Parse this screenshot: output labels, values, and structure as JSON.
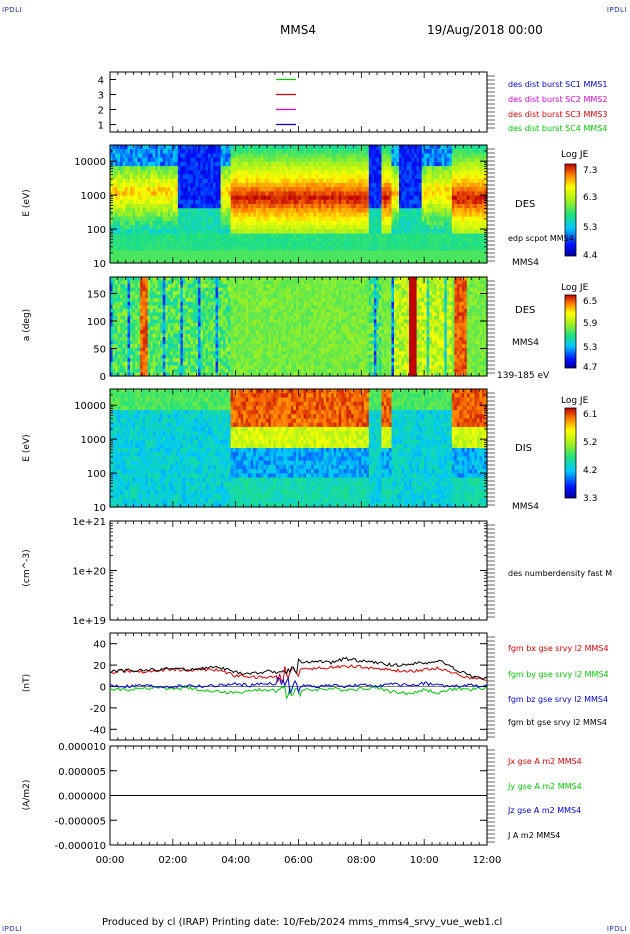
{
  "corners": {
    "tl": "IPDLI",
    "tr": "IPDLI",
    "bl": "IPDLI",
    "br": "IPDLI"
  },
  "header": {
    "spacecraft": "MMS4",
    "date": "19/Aug/2018 00:00"
  },
  "footer": "Produced by cl (IRAP)   Printing date: 10/Feb/2024   mms_mms4_srvy_vue_web1.cl",
  "colors": {
    "black": "#000000",
    "red": "#e00000",
    "green": "#00cc00",
    "blue": "#0000dd",
    "magenta": "#dd00dd"
  },
  "chart_data": [
    {
      "type": "line",
      "panel": "burst",
      "yticks": [
        "1",
        "2",
        "3",
        "4"
      ],
      "ylim": [
        0.5,
        4.5
      ],
      "legend": [
        {
          "label": "des dist burst SC1 MMS1",
          "color": "#0000dd"
        },
        {
          "label": "des dist burst SC2 MMS2",
          "color": "#dd00dd"
        },
        {
          "label": "des dist burst SC3 MMS3",
          "color": "#e00000"
        },
        {
          "label": "des dist burst SC4 MMS4",
          "color": "#00cc00"
        }
      ],
      "series": [
        {
          "y": 4,
          "color": "#00cc00"
        },
        {
          "y": 3,
          "color": "#e00000"
        },
        {
          "y": 2,
          "color": "#dd00dd"
        },
        {
          "y": 1,
          "color": "#0000dd"
        }
      ]
    },
    {
      "type": "heatmap",
      "panel": "des-energy",
      "ylabel": "E (eV)",
      "yticks": [
        "10",
        "100",
        "1000",
        "10000"
      ],
      "ylim": [
        10,
        30000
      ],
      "log_y": true,
      "instrument": "DES",
      "overlay": "edp scpot MMS4",
      "sc": "MMS4",
      "colorbar": {
        "title": "Log JE",
        "ticks": [
          "7.3",
          "6.3",
          "5.3",
          "4.4"
        ],
        "range": [
          4.4,
          7.3
        ]
      }
    },
    {
      "type": "heatmap",
      "panel": "des-pitch",
      "ylabel": "a (deg)",
      "yticks": [
        "0",
        "50",
        "100",
        "150"
      ],
      "ylim": [
        0,
        180
      ],
      "instrument": "DES",
      "sc": "MMS4",
      "energy_range": "139-185 eV",
      "colorbar": {
        "title": "Log JE",
        "ticks": [
          "6.5",
          "5.9",
          "5.3",
          "4.7"
        ],
        "range": [
          4.7,
          6.5
        ]
      }
    },
    {
      "type": "heatmap",
      "panel": "dis-energy",
      "ylabel": "E (eV)",
      "yticks": [
        "10",
        "100",
        "1000",
        "10000"
      ],
      "ylim": [
        10,
        30000
      ],
      "log_y": true,
      "instrument": "DIS",
      "sc": "MMS4",
      "colorbar": {
        "title": "Log JE",
        "ticks": [
          "6.1",
          "5.2",
          "4.2",
          "3.3"
        ],
        "range": [
          3.3,
          6.1
        ]
      }
    },
    {
      "type": "line",
      "panel": "density",
      "ylabel": "(cm^-3)",
      "yticks": [
        "1e+19",
        "1e+20",
        "1e+21"
      ],
      "ylim": [
        1e+19,
        1e+21
      ],
      "log_y": true,
      "legend": [
        {
          "label": "des numberdensity fast M",
          "color": "#000000"
        }
      ],
      "series": []
    },
    {
      "type": "line",
      "panel": "magnetic-field",
      "ylabel": "(nT)",
      "yticks": [
        "-40",
        "-20",
        "0",
        "20",
        "40"
      ],
      "ylim": [
        -50,
        50
      ],
      "x": [
        0,
        0.5,
        1,
        1.5,
        2,
        2.5,
        3,
        3.5,
        4,
        4.5,
        5,
        5.5,
        6,
        6.5,
        7,
        7.5,
        8,
        8.5,
        9,
        9.5,
        10,
        10.5,
        11,
        11.5,
        12
      ],
      "legend": [
        {
          "label": "fgm bx gse srvy l2 MMS4",
          "color": "#e00000"
        },
        {
          "label": "fgm by gse srvy l2 MMS4",
          "color": "#00cc00"
        },
        {
          "label": "fgm bz gse srvy l2 MMS4",
          "color": "#0000dd"
        },
        {
          "label": "fgm bt gse srvy l2 MMS4",
          "color": "#000000"
        }
      ],
      "series": [
        {
          "color": "#e00000",
          "values": [
            13,
            15,
            14,
            15,
            16,
            15,
            16,
            15,
            10,
            9,
            8,
            11,
            16,
            17,
            18,
            19,
            18,
            17,
            15,
            14,
            16,
            17,
            12,
            8,
            5
          ]
        },
        {
          "color": "#00cc00",
          "values": [
            -2,
            -3,
            -2,
            -1,
            -2,
            -2,
            -3,
            -5,
            -6,
            -4,
            -3,
            -5,
            -4,
            -3,
            -2,
            -3,
            -2,
            -1,
            -5,
            -7,
            -3,
            -6,
            -2,
            -3,
            -1
          ]
        },
        {
          "color": "#0000dd",
          "values": [
            1,
            0,
            1,
            0,
            0,
            1,
            0,
            1,
            2,
            1,
            3,
            2,
            1,
            0,
            1,
            0,
            1,
            1,
            2,
            1,
            3,
            1,
            0,
            1,
            0
          ]
        },
        {
          "color": "#000000",
          "values": [
            14,
            15,
            15,
            16,
            17,
            16,
            17,
            18,
            13,
            12,
            14,
            13,
            20,
            24,
            22,
            26,
            24,
            22,
            20,
            21,
            22,
            24,
            16,
            10,
            7
          ]
        }
      ]
    },
    {
      "type": "line",
      "panel": "current-density",
      "ylabel": "(A/m2)",
      "yticks": [
        "-0.000010",
        "-0.000005",
        "0.000000",
        "0.000005",
        "0.000010"
      ],
      "ylim": [
        -1e-05,
        1e-05
      ],
      "legend": [
        {
          "label": "Jx gse A m2 MMS4",
          "color": "#e00000"
        },
        {
          "label": "Jy gse A m2 MMS4",
          "color": "#00cc00"
        },
        {
          "label": "Jz gse A m2 MMS4",
          "color": "#0000dd"
        },
        {
          "label": "J A m2 MMS4",
          "color": "#000000"
        }
      ],
      "series": [
        {
          "color": "#000000",
          "values": [
            0,
            0,
            0,
            0,
            0,
            0,
            0,
            0,
            0,
            0,
            0,
            0,
            0,
            0,
            0,
            0,
            0,
            0,
            0,
            0,
            0,
            0,
            0,
            0,
            0
          ]
        }
      ]
    }
  ],
  "time_axis": {
    "ticks": [
      "00:00",
      "02:00",
      "04:00",
      "06:00",
      "08:00",
      "10:00",
      "12:00"
    ],
    "range_hours": [
      0,
      12
    ]
  }
}
